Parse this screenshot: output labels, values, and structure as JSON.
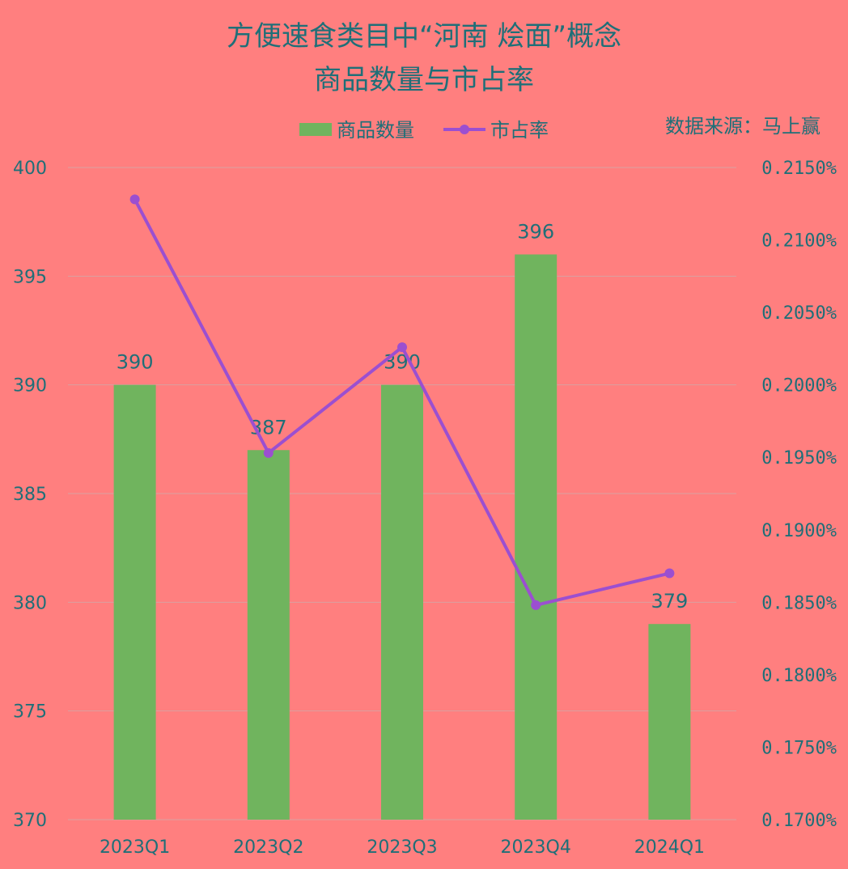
{
  "chart_data": {
    "type": "bar+line",
    "title": [
      "方便速食类目中“河南 烩面”概念",
      "商品数量与市占率"
    ],
    "source": "数据来源：马上赢",
    "categories": [
      "2023Q1",
      "2023Q2",
      "2023Q3",
      "2023Q4",
      "2024Q1"
    ],
    "series": [
      {
        "name": "商品数量",
        "type": "bar",
        "axis": "left",
        "color": "#70b45e",
        "values": [
          390,
          387,
          390,
          396,
          379
        ],
        "labels": [
          "390",
          "387",
          "390",
          "396",
          "379"
        ]
      },
      {
        "name": "市占率",
        "type": "line",
        "axis": "right",
        "color": "#9b4fd0",
        "values": [
          0.2128,
          0.1953,
          0.2026,
          0.1848,
          0.187
        ]
      }
    ],
    "y_left": {
      "min": 370,
      "max": 400,
      "ticks": [
        "400",
        "395",
        "390",
        "385",
        "380",
        "375",
        "370"
      ],
      "tick_values": [
        400,
        395,
        390,
        385,
        380,
        375,
        370
      ]
    },
    "y_right": {
      "min": 0.17,
      "max": 0.215,
      "ticks": [
        "0.2150%",
        "0.2100%",
        "0.2050%",
        "0.2000%",
        "0.1950%",
        "0.1900%",
        "0.1850%",
        "0.1800%",
        "0.1750%",
        "0.1700%"
      ]
    },
    "grid": true,
    "legend_position": "top"
  }
}
